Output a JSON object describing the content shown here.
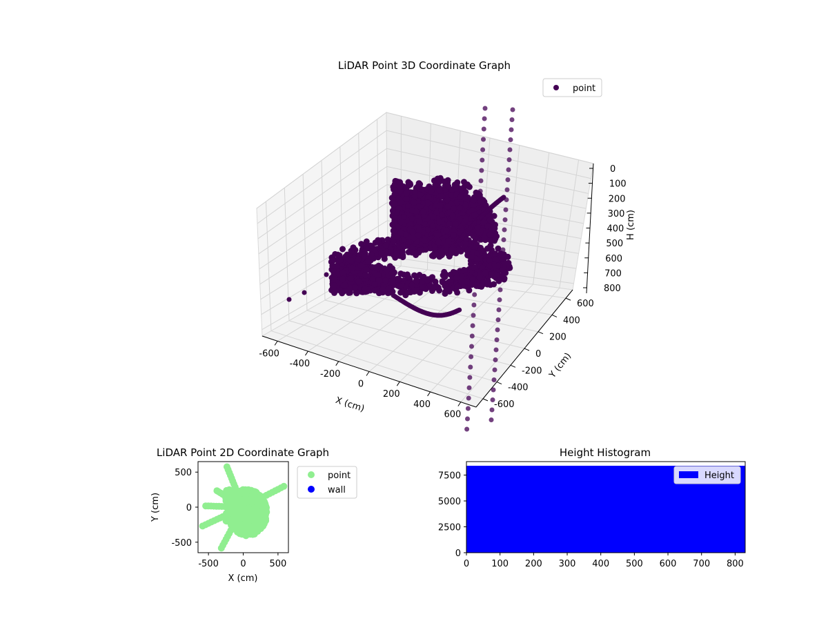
{
  "chart_data": [
    {
      "type": "scatter",
      "title": "LiDAR Point 3D Coordinate Graph",
      "xlabel": "X (cm)",
      "ylabel": "Y (cm)",
      "zlabel": "H (cm)",
      "x_ticks": [
        "-600",
        "-400",
        "-200",
        "0",
        "200",
        "400",
        "600"
      ],
      "y_ticks": [
        "-600",
        "-400",
        "-200",
        "0",
        "200",
        "400",
        "600"
      ],
      "z_ticks": [
        "0",
        "100",
        "200",
        "300",
        "400",
        "500",
        "600",
        "700",
        "800"
      ],
      "xlim": [
        -700,
        700
      ],
      "ylim": [
        -700,
        700
      ],
      "zlim": [
        0,
        850
      ],
      "z_inverted": true,
      "grid": true,
      "legend": {
        "position": "top-right",
        "entries": [
          {
            "label": "point",
            "color": "#440154"
          }
        ]
      },
      "series": [
        {
          "name": "point",
          "color": "#440154"
        }
      ]
    },
    {
      "type": "scatter",
      "title": "LiDAR Point 2D Coordinate Graph",
      "xlabel": "X (cm)",
      "ylabel": "Y (cm)",
      "x_ticks": [
        "-500",
        "0",
        "500"
      ],
      "y_ticks": [
        "500",
        "0",
        "-500"
      ],
      "xlim": [
        -650,
        650
      ],
      "ylim": [
        -650,
        650
      ],
      "legend": {
        "position": "outside-right",
        "entries": [
          {
            "label": "point",
            "color": "#90ee90"
          },
          {
            "label": "wall",
            "color": "#0000ff"
          }
        ]
      },
      "series": [
        {
          "name": "point",
          "color": "#90ee90"
        },
        {
          "name": "wall",
          "color": "#0000ff"
        }
      ]
    },
    {
      "type": "bar",
      "title": "Height Histogram",
      "x_ticks": [
        "0",
        "100",
        "200",
        "300",
        "400",
        "500",
        "600",
        "700",
        "800"
      ],
      "y_ticks": [
        "0",
        "2500",
        "5000",
        "7500"
      ],
      "xlim": [
        0,
        830
      ],
      "ylim": [
        0,
        8800
      ],
      "values": [
        8400
      ],
      "bin_range": [
        0,
        830
      ],
      "color": "#0000ff",
      "legend": {
        "position": "top-right",
        "entries": [
          {
            "label": "Height",
            "color": "#0000ff"
          }
        ]
      }
    }
  ]
}
